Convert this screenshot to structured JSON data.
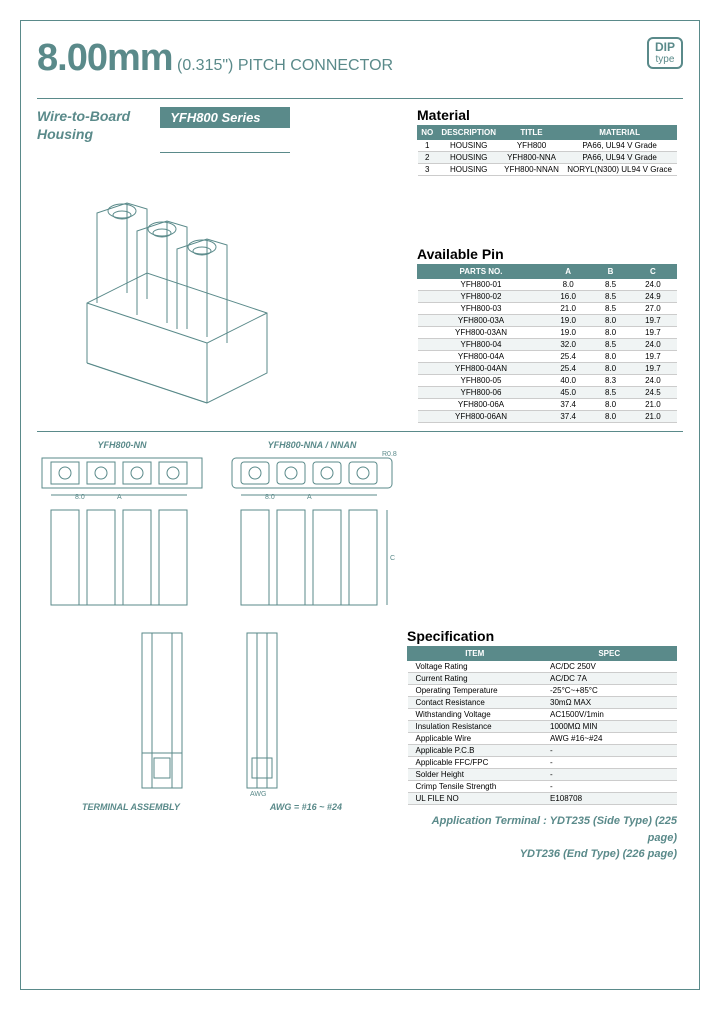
{
  "header": {
    "size": "8.00mm",
    "sub": "(0.315\") PITCH CONNECTOR",
    "badge_top": "DIP",
    "badge_bottom": "type"
  },
  "category": {
    "line1": "Wire-to-Board",
    "line2": "Housing"
  },
  "series": "YFH800 Series",
  "material": {
    "title": "Material",
    "headers": [
      "NO",
      "DESCRIPTION",
      "TITLE",
      "MATERIAL"
    ],
    "rows": [
      [
        "1",
        "HOUSING",
        "YFH800",
        "PA66, UL94 V Grade"
      ],
      [
        "2",
        "HOUSING",
        "YFH800-NNA",
        "PA66, UL94 V Grade"
      ],
      [
        "3",
        "HOUSING",
        "YFH800-NNAN",
        "NORYL(N300) UL94 V Grace"
      ]
    ]
  },
  "available_pin": {
    "title": "Available Pin",
    "headers": [
      "PARTS NO.",
      "A",
      "B",
      "C"
    ],
    "rows": [
      [
        "YFH800-01",
        "8.0",
        "8.5",
        "24.0"
      ],
      [
        "YFH800-02",
        "16.0",
        "8.5",
        "24.9"
      ],
      [
        "YFH800-03",
        "21.0",
        "8.5",
        "27.0"
      ],
      [
        "YFH800-03A",
        "19.0",
        "8.0",
        "19.7"
      ],
      [
        "YFH800-03AN",
        "19.0",
        "8.0",
        "19.7"
      ],
      [
        "YFH800-04",
        "32.0",
        "8.5",
        "24.0"
      ],
      [
        "YFH800-04A",
        "25.4",
        "8.0",
        "19.7"
      ],
      [
        "YFH800-04AN",
        "25.4",
        "8.0",
        "19.7"
      ],
      [
        "YFH800-05",
        "40.0",
        "8.3",
        "24.0"
      ],
      [
        "YFH800-06",
        "45.0",
        "8.5",
        "24.5"
      ],
      [
        "YFH800-06A",
        "37.4",
        "8.0",
        "21.0"
      ],
      [
        "YFH800-06AN",
        "37.4",
        "8.0",
        "21.0"
      ]
    ]
  },
  "schematic": {
    "label1": "YFH800-NN",
    "label2": "YFH800-NNA / NNAN",
    "awg": "AWG = #16 ~ #24",
    "terminal": "TERMINAL ASSEMBLY"
  },
  "specification": {
    "title": "Specification",
    "headers": [
      "ITEM",
      "SPEC"
    ],
    "rows": [
      [
        "Voltage Rating",
        "AC/DC 250V"
      ],
      [
        "Current Rating",
        "AC/DC 7A"
      ],
      [
        "Operating Temperature",
        "-25°C~+85°C"
      ],
      [
        "Contact Resistance",
        "30mΩ MAX"
      ],
      [
        "Withstanding Voltage",
        "AC1500V/1min"
      ],
      [
        "Insulation Resistance",
        "1000MΩ MIN"
      ],
      [
        "Applicable Wire",
        "AWG #16~#24"
      ],
      [
        "Applicable P.C.B",
        "-"
      ],
      [
        "Applicable FFC/FPC",
        "-"
      ],
      [
        "Solder Height",
        "-"
      ],
      [
        "Crimp Tensile Strength",
        "-"
      ],
      [
        "UL FILE NO",
        "E108708"
      ]
    ]
  },
  "application": {
    "line1": "Application Terminal : YDT235 (Side Type) (225 page)",
    "line2": "YDT236 (End Type) (226 page)"
  },
  "colors": {
    "brand": "#5a8a8a",
    "bg": "#ffffff"
  }
}
